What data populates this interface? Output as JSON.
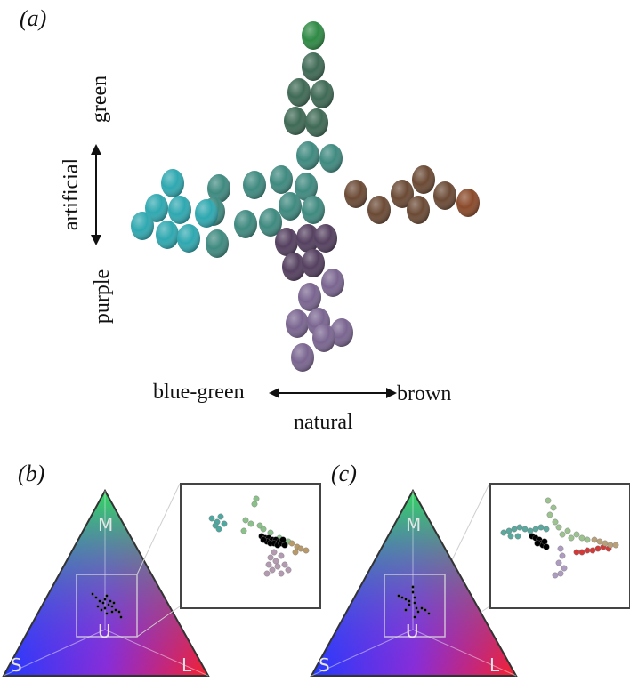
{
  "panels": {
    "a": {
      "label": "(a)"
    },
    "b": {
      "label": "(b)"
    },
    "c": {
      "label": "(c)"
    }
  },
  "panel_a": {
    "vertical_top": "green",
    "vertical_middle": "artificial",
    "vertical_bottom": "purple",
    "horizontal_left": "blue-green",
    "horizontal_right": "brown",
    "horizontal_bottom": "natural"
  },
  "triangle": {
    "vertex_top": "M",
    "vertex_left": "S",
    "vertex_right": "L",
    "center": "U"
  },
  "colors": {
    "green_egg": "#2f8a45",
    "dark_green_egg": "#3f6a55",
    "teal_egg": "#2fa8b0",
    "blue_green_egg": "#3f8a80",
    "brown_egg": "#6b4a35",
    "rust_egg": "#8a4a2a",
    "purple_egg": "#7a6590",
    "dark_purple_egg": "#554060",
    "red_point": "#d23a3a"
  }
}
